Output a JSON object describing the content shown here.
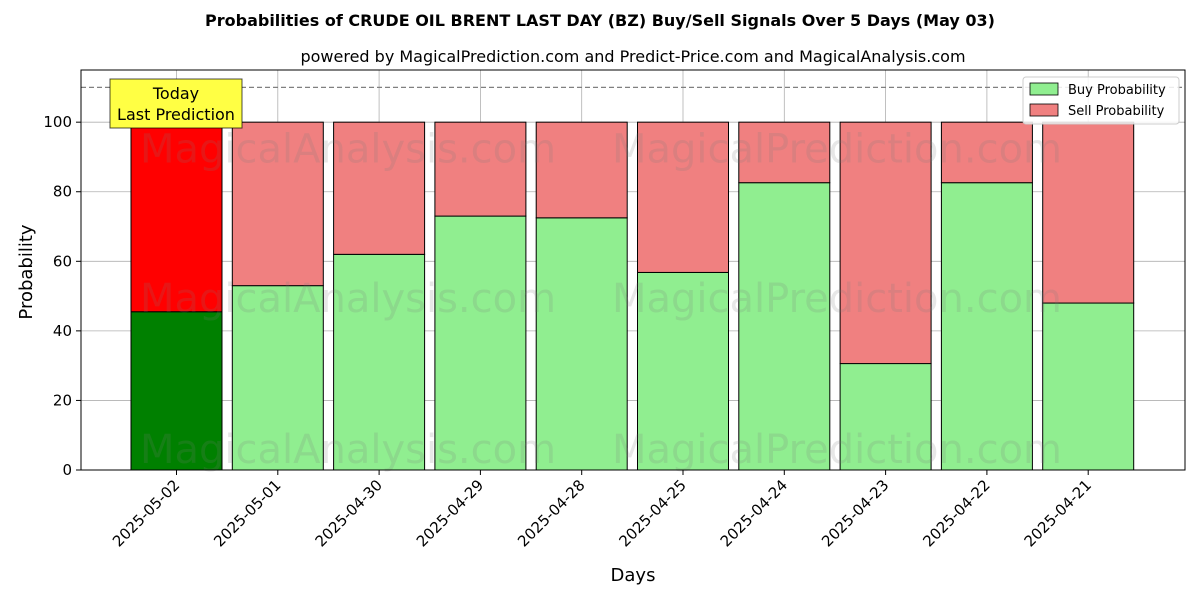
{
  "chart_data": {
    "type": "bar",
    "stacked": true,
    "title": "Probabilities of CRUDE OIL BRENT LAST DAY (BZ) Buy/Sell Signals Over 5 Days (May 03)",
    "subtitle": "powered by MagicalPrediction.com and Predict-Price.com and MagicalAnalysis.com",
    "xlabel": "Days",
    "ylabel": "Probability",
    "ylim": [
      0,
      115
    ],
    "yticks": [
      0,
      20,
      40,
      60,
      80,
      100
    ],
    "categories": [
      "2025-05-02",
      "2025-05-01",
      "2025-04-30",
      "2025-04-29",
      "2025-04-28",
      "2025-04-25",
      "2025-04-24",
      "2025-04-23",
      "2025-04-22",
      "2025-04-21"
    ],
    "series": [
      {
        "name": "Buy Probability",
        "color": "#90ee90",
        "highlight_color": "#008000",
        "values": [
          45.5,
          53.0,
          62.0,
          73.0,
          72.5,
          56.8,
          82.6,
          30.6,
          82.6,
          48.0
        ]
      },
      {
        "name": "Sell Probability",
        "color": "#f08080",
        "highlight_color": "#ff0000",
        "values": [
          54.5,
          47.0,
          38.0,
          27.0,
          27.5,
          43.2,
          17.4,
          69.4,
          17.4,
          52.0
        ]
      }
    ],
    "reference_line": {
      "y": 110,
      "style": "dashed"
    },
    "annotation": {
      "lines": [
        "Today",
        "Last Prediction"
      ],
      "background": "#ffff44"
    },
    "legend": {
      "position": "top-right"
    },
    "grid": true,
    "watermarks": [
      "MagicalAnalysis.com",
      "MagicalPrediction.com"
    ]
  }
}
